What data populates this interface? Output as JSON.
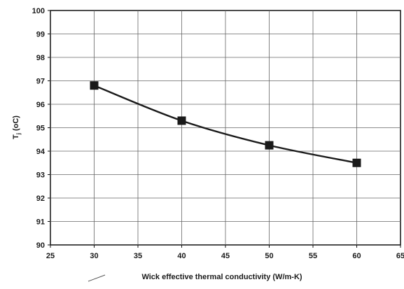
{
  "chart_data": {
    "type": "line",
    "title": "",
    "xlabel": "Wick effective thermal conductivity (W/m-K)",
    "ylabel_main": "T",
    "ylabel_sub": "j",
    "ylabel_unit": "(oC)",
    "xlim": [
      25,
      65
    ],
    "ylim": [
      90,
      100
    ],
    "x_ticks": [
      25,
      30,
      35,
      40,
      45,
      50,
      55,
      60,
      65
    ],
    "y_ticks": [
      90,
      91,
      92,
      93,
      94,
      95,
      96,
      97,
      98,
      99,
      100
    ],
    "grid": true,
    "legend": "none",
    "series": [
      {
        "marker": "square",
        "color": "#1a1a1a",
        "x": [
          30,
          40,
          50,
          60
        ],
        "y": [
          96.8,
          95.3,
          94.25,
          93.5
        ]
      }
    ]
  }
}
